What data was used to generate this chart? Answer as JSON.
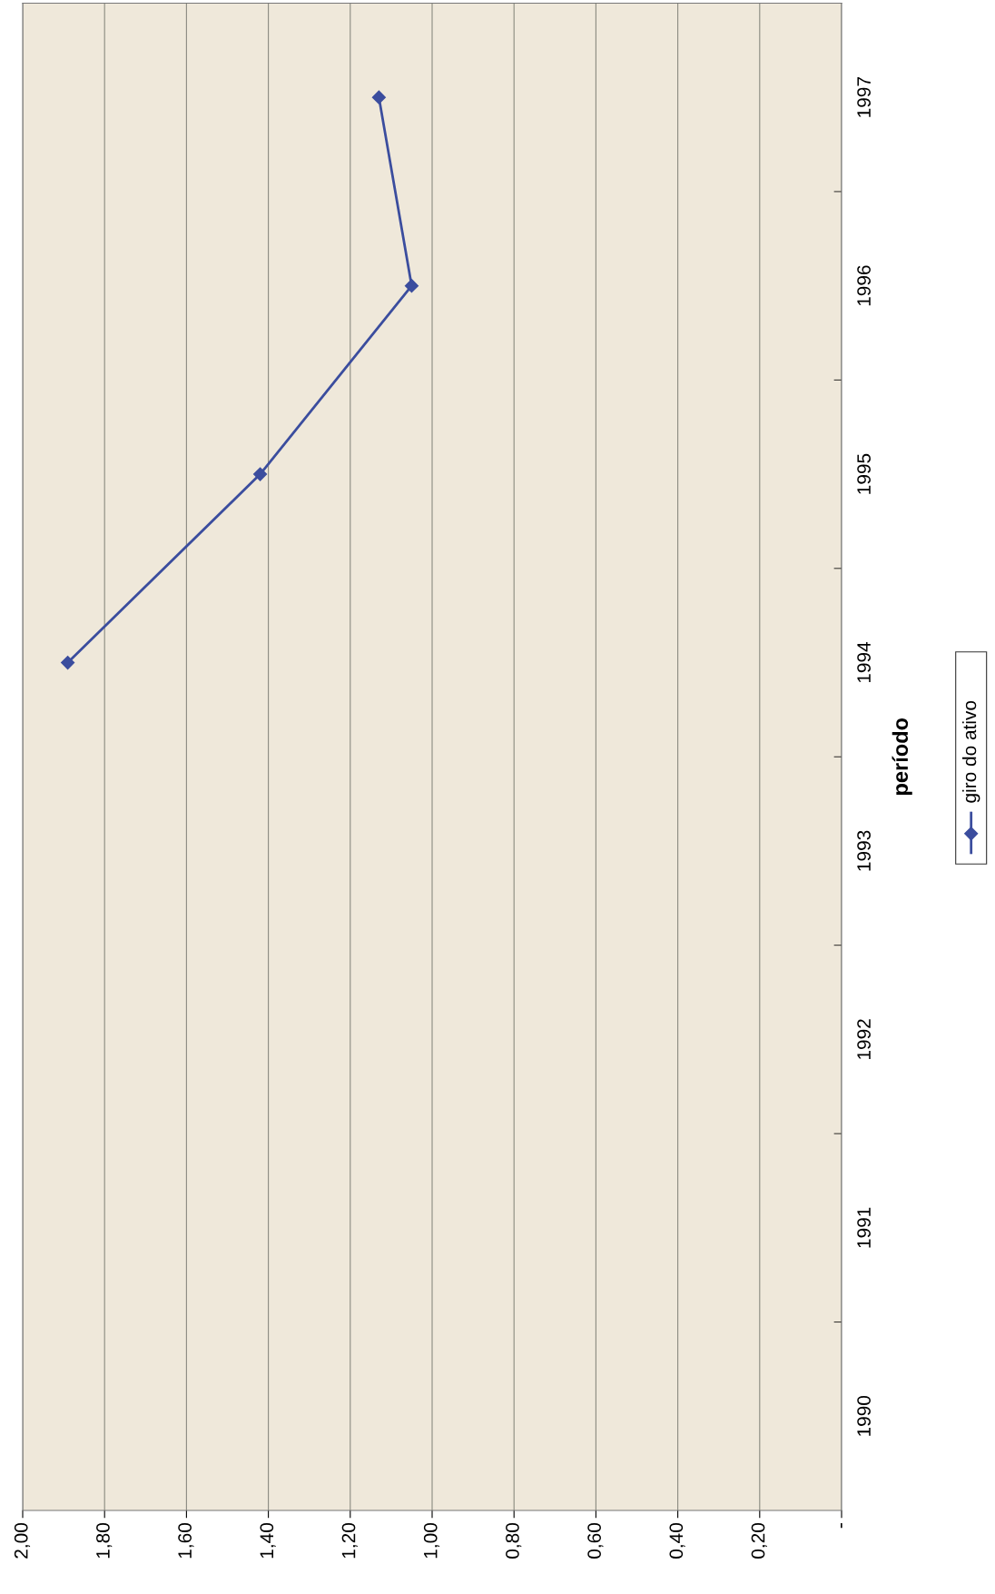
{
  "chart_data": {
    "type": "line",
    "orientation": "horizontal",
    "ylabel": "período",
    "categories": [
      "1997",
      "1996",
      "1995",
      "1994",
      "1993",
      "1992",
      "1991",
      "1990"
    ],
    "series": [
      {
        "name": "giro do ativo",
        "color": "#3b4d9e",
        "values": [
          1.13,
          1.05,
          1.42,
          1.89,
          null,
          null,
          null,
          null
        ]
      }
    ],
    "xlim": [
      2.0,
      0
    ],
    "xticks": [
      {
        "value": 2.0,
        "label": "2,00"
      },
      {
        "value": 1.8,
        "label": "1,80"
      },
      {
        "value": 1.6,
        "label": "1,60"
      },
      {
        "value": 1.4,
        "label": "1,40"
      },
      {
        "value": 1.2,
        "label": "1,20"
      },
      {
        "value": 1.0,
        "label": "1,00"
      },
      {
        "value": 0.8,
        "label": "0,80"
      },
      {
        "value": 0.6,
        "label": "0,60"
      },
      {
        "value": 0.4,
        "label": "0,40"
      },
      {
        "value": 0.2,
        "label": "0,20"
      },
      {
        "value": 0,
        "label": "-"
      }
    ],
    "grid": "x",
    "legend": "right",
    "marker": "diamond",
    "line_style": "solid"
  }
}
